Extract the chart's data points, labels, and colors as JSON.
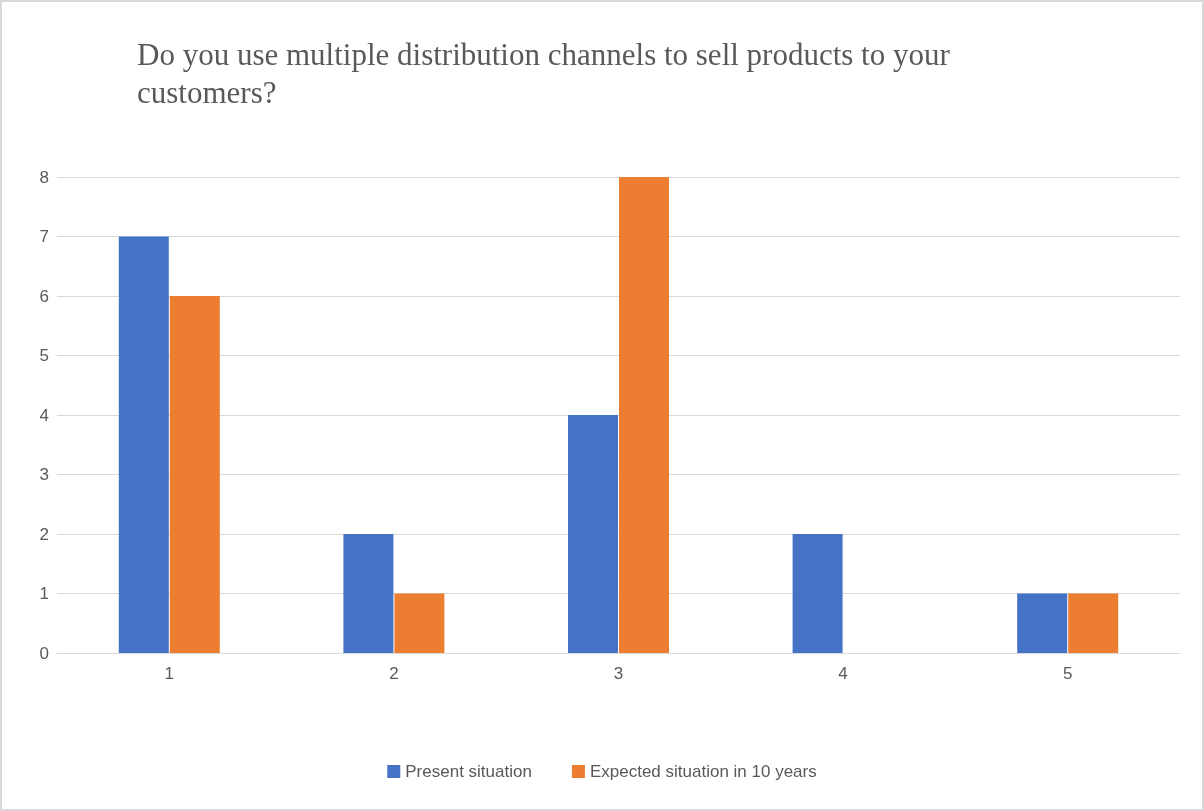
{
  "chart_data": {
    "type": "bar",
    "title": "Do you use multiple distribution channels to sell products to your customers?",
    "categories": [
      "1",
      "2",
      "3",
      "4",
      "5"
    ],
    "series": [
      {
        "name": "Present situation",
        "color": "#4472c4",
        "values": [
          7,
          2,
          4,
          2,
          1
        ]
      },
      {
        "name": "Expected situation in 10 years",
        "color": "#ed7d31",
        "values": [
          6,
          1,
          8,
          0,
          1
        ]
      }
    ],
    "ylim": [
      0,
      8
    ],
    "yticks": [
      0,
      1,
      2,
      3,
      4,
      5,
      6,
      7,
      8
    ],
    "grid": "y",
    "legend": "bottom"
  }
}
